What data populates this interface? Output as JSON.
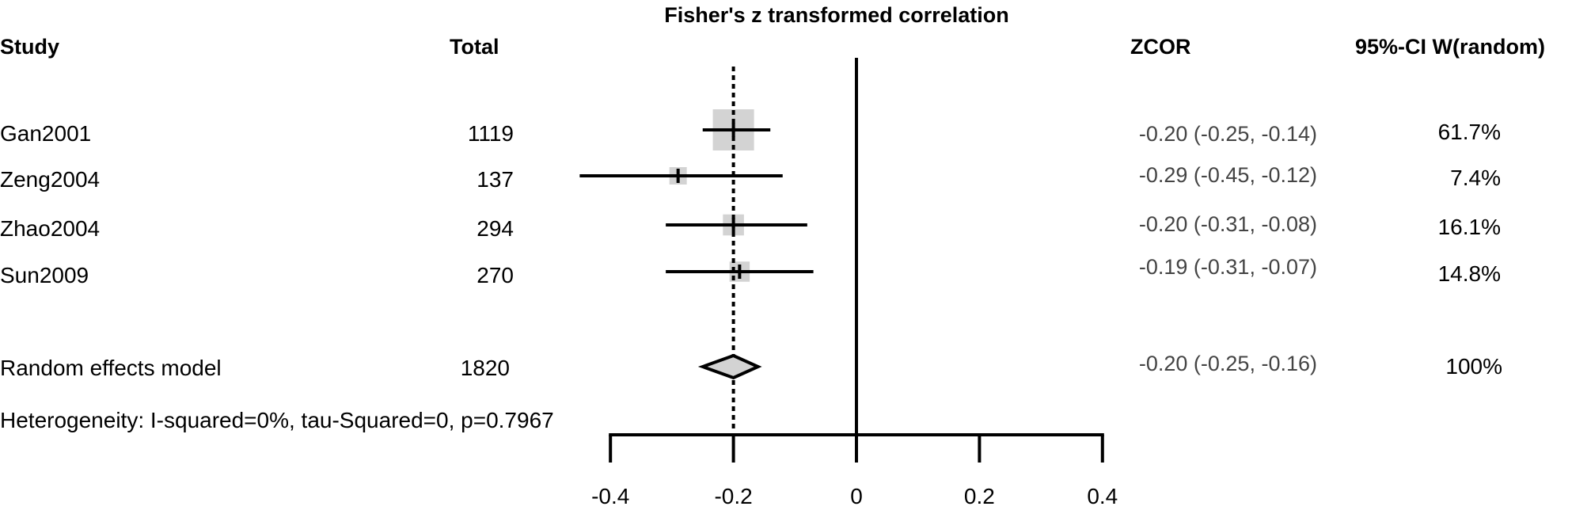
{
  "chart_data": {
    "type": "forest",
    "title": "Fisher's z transformed correlation",
    "columns": {
      "study": "Study",
      "total": "Total",
      "estimate": "ZCOR",
      "ci_weight": "95%-CI W(random)"
    },
    "studies": [
      {
        "name": "Gan2001",
        "total": "1119",
        "estimate": -0.2,
        "lower": -0.25,
        "upper": -0.14,
        "ci_text": "-0.20 (-0.25, -0.14)",
        "weight": 61.7,
        "weight_text": "61.7%"
      },
      {
        "name": "Zeng2004",
        "total": "137",
        "estimate": -0.29,
        "lower": -0.45,
        "upper": -0.12,
        "ci_text": "-0.29 (-0.45, -0.12)",
        "weight": 7.4,
        "weight_text": "7.4%"
      },
      {
        "name": "Zhao2004",
        "total": "294",
        "estimate": -0.2,
        "lower": -0.31,
        "upper": -0.08,
        "ci_text": "-0.20 (-0.31, -0.08)",
        "weight": 16.1,
        "weight_text": "16.1%"
      },
      {
        "name": "Sun2009",
        "total": "270",
        "estimate": -0.19,
        "lower": -0.31,
        "upper": -0.07,
        "ci_text": "-0.19 (-0.31, -0.07)",
        "weight": 14.8,
        "weight_text": "14.8%"
      }
    ],
    "pooled": {
      "name": "Random effects model",
      "total": "1820",
      "estimate": -0.2,
      "lower": -0.25,
      "upper": -0.16,
      "ci_text": "-0.20 (-0.25, -0.16)",
      "weight_text": "100%"
    },
    "heterogeneity": "Heterogeneity: I-squared=0%, tau-Squared=0, p=0.7967",
    "xlim": [
      -0.4,
      0.4
    ],
    "xticks": [
      -0.4,
      -0.2,
      0,
      0.2,
      0.4
    ],
    "xtick_labels": [
      "-0.4",
      "-0.2",
      "0",
      "0.2",
      "0.4"
    ],
    "reference_line": 0,
    "colors": {
      "box": "#d3d3d3",
      "diamond": "#d3d3d3",
      "line": "#000000",
      "estimate_text": "#444444"
    }
  }
}
